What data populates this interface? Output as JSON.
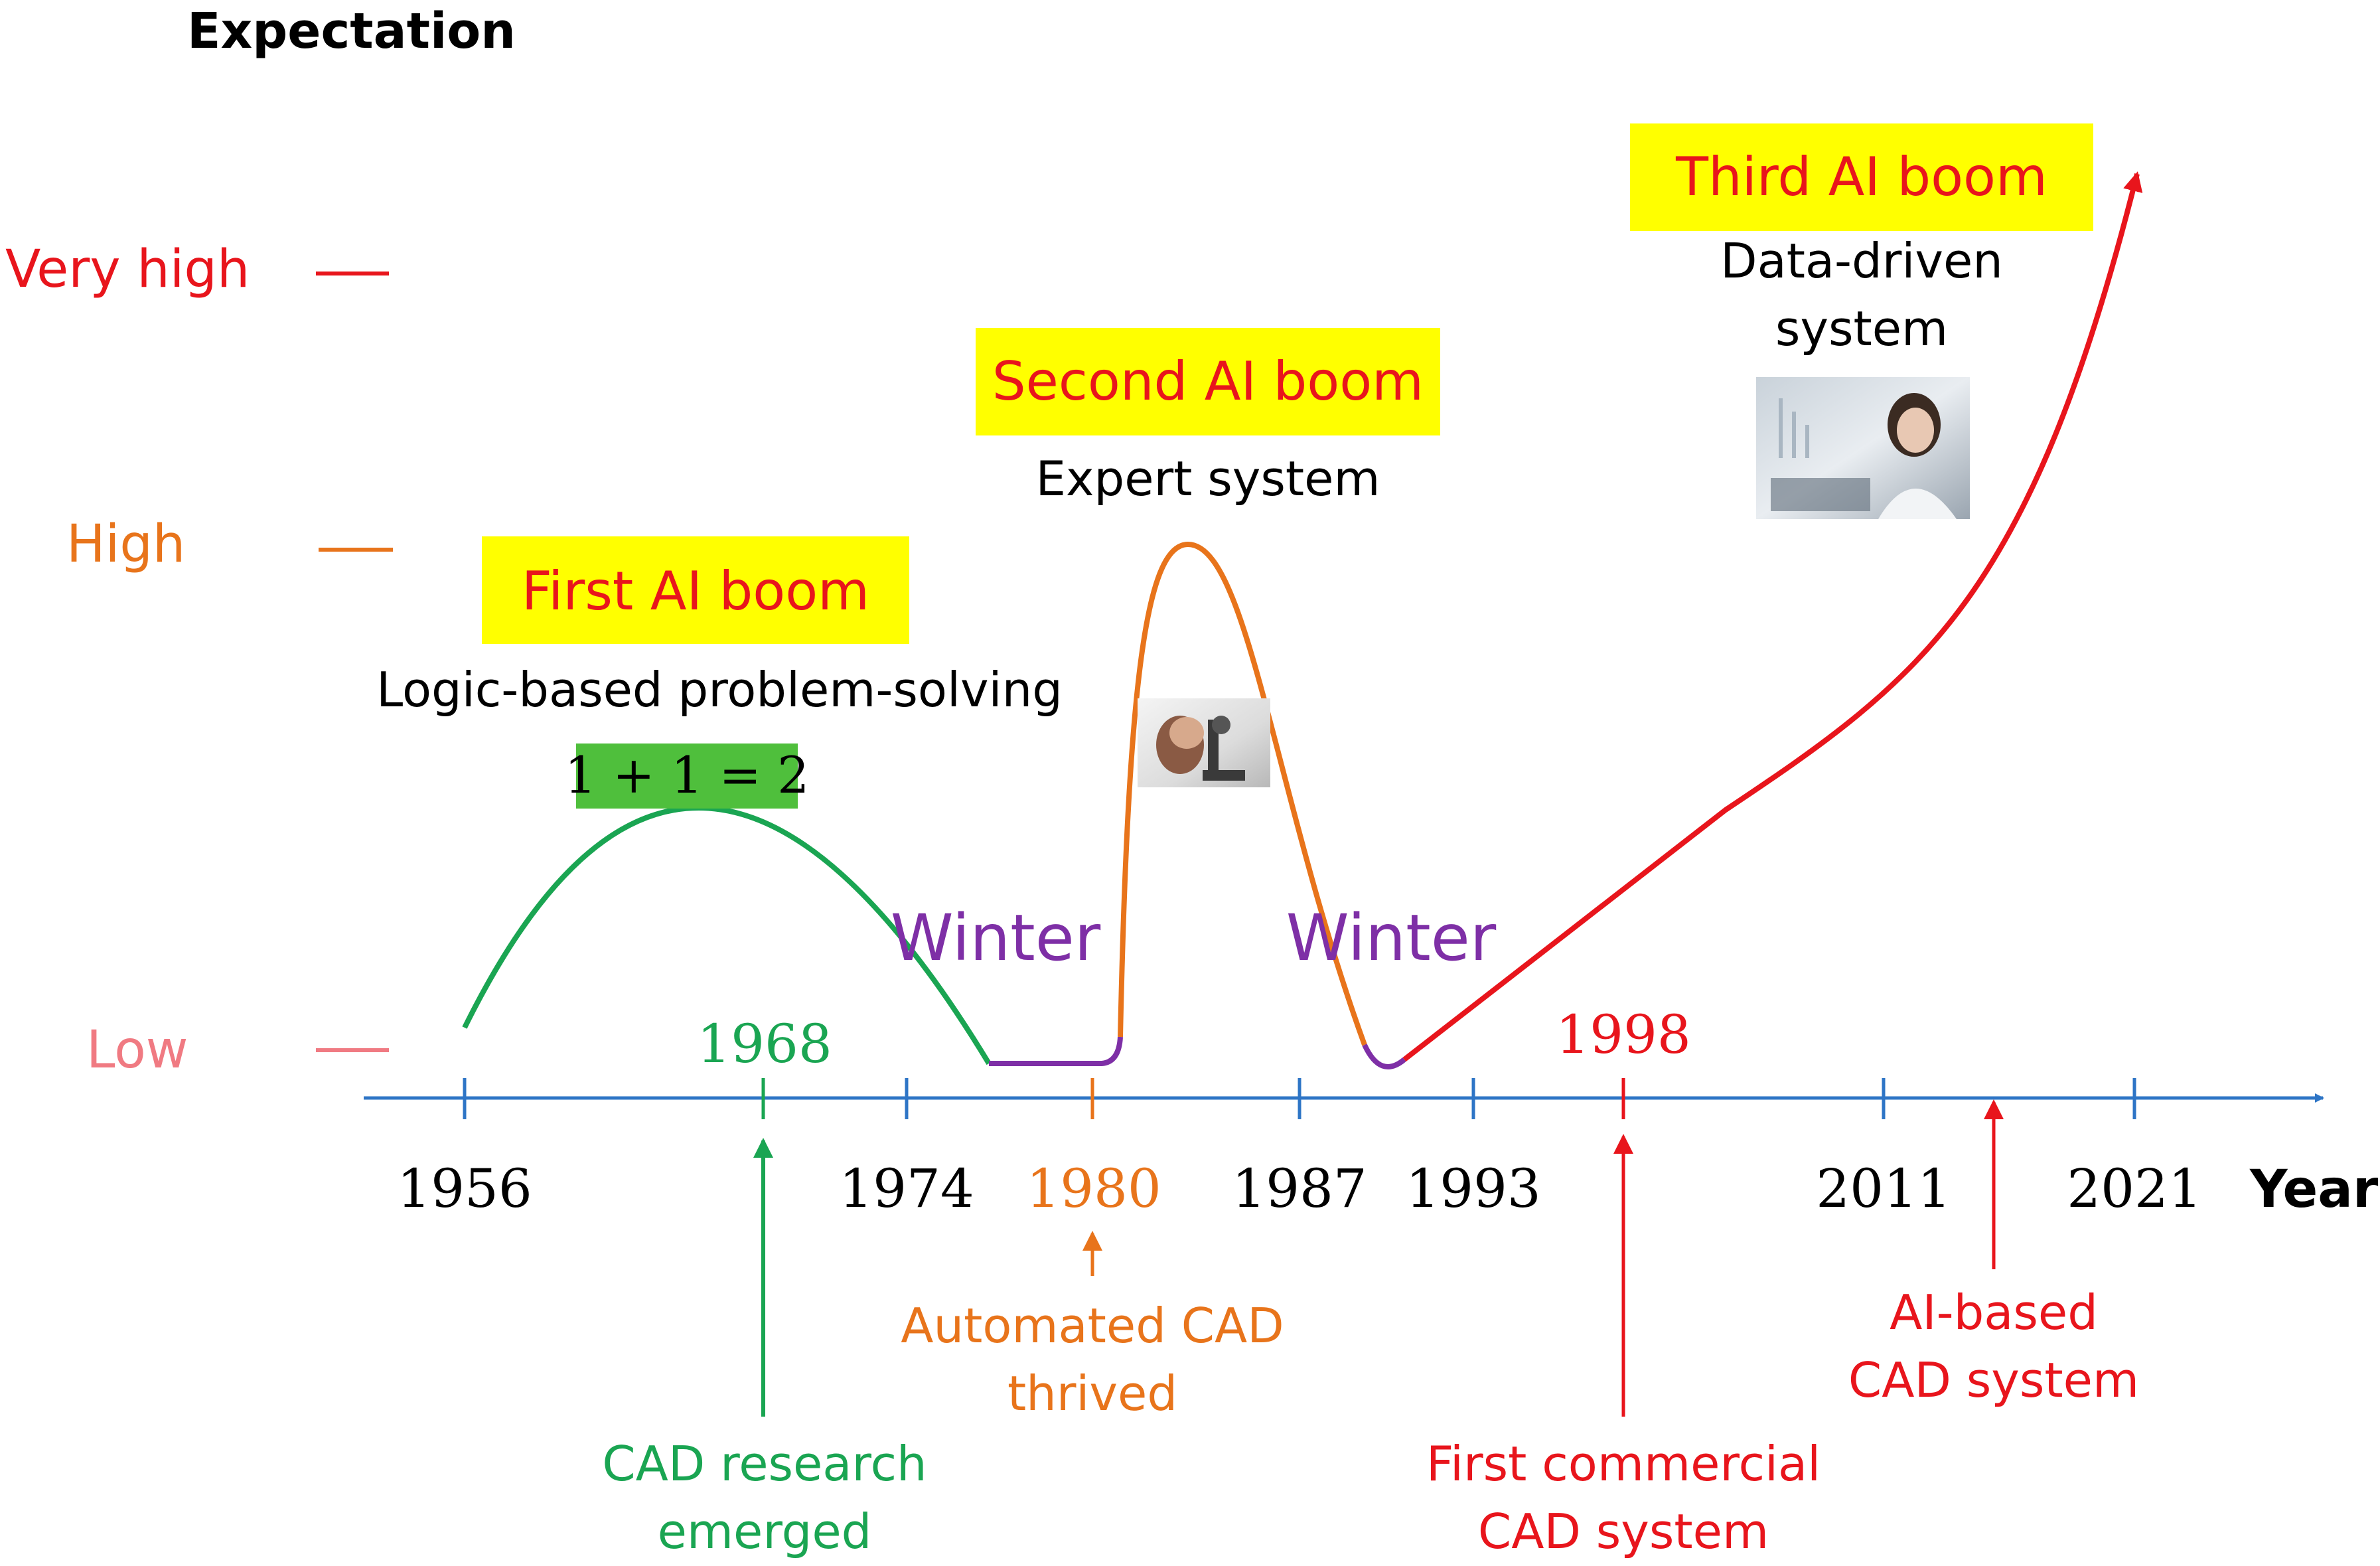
{
  "title": "Expectation",
  "x_axis_label": "Year",
  "y_levels": [
    {
      "label": "Very high",
      "color": "#e8151c"
    },
    {
      "label": "High",
      "color": "#e8741b"
    },
    {
      "label": "Low",
      "color": "#f07a82"
    }
  ],
  "year_ticks": [
    "1956",
    "1974",
    "1980",
    "1987",
    "1993",
    "2011",
    "2021"
  ],
  "highlight_years": [
    "1968",
    "1998"
  ],
  "booms": [
    {
      "label": "First AI boom",
      "subtitle": "Logic-based problem-solving",
      "formula": "1 + 1 = 2"
    },
    {
      "label": "Second AI boom",
      "subtitle": "Expert system"
    },
    {
      "label": "Third AI boom",
      "subtitle_line1": "Data-driven",
      "subtitle_line2": "system"
    }
  ],
  "winters": [
    "Winter",
    "Winter"
  ],
  "events": [
    {
      "line1": "CAD research",
      "line2": "emerged",
      "color": "#1aa552"
    },
    {
      "line1": "Automated CAD",
      "line2": "thrived",
      "color": "#e8741b"
    },
    {
      "line1": "First commercial",
      "line2": "CAD system",
      "color": "#e8151c"
    },
    {
      "line1": "AI-based",
      "line2": "CAD system",
      "color": "#e8151c"
    }
  ],
  "colors": {
    "axis": "#2e75c6",
    "first_boom": "#1aa552",
    "second_boom": "#e8741b",
    "third_boom": "#e8151c",
    "winter": "#7e2fa6",
    "highlight_box": "#ffff00",
    "formula_box": "#4fbf3c"
  }
}
